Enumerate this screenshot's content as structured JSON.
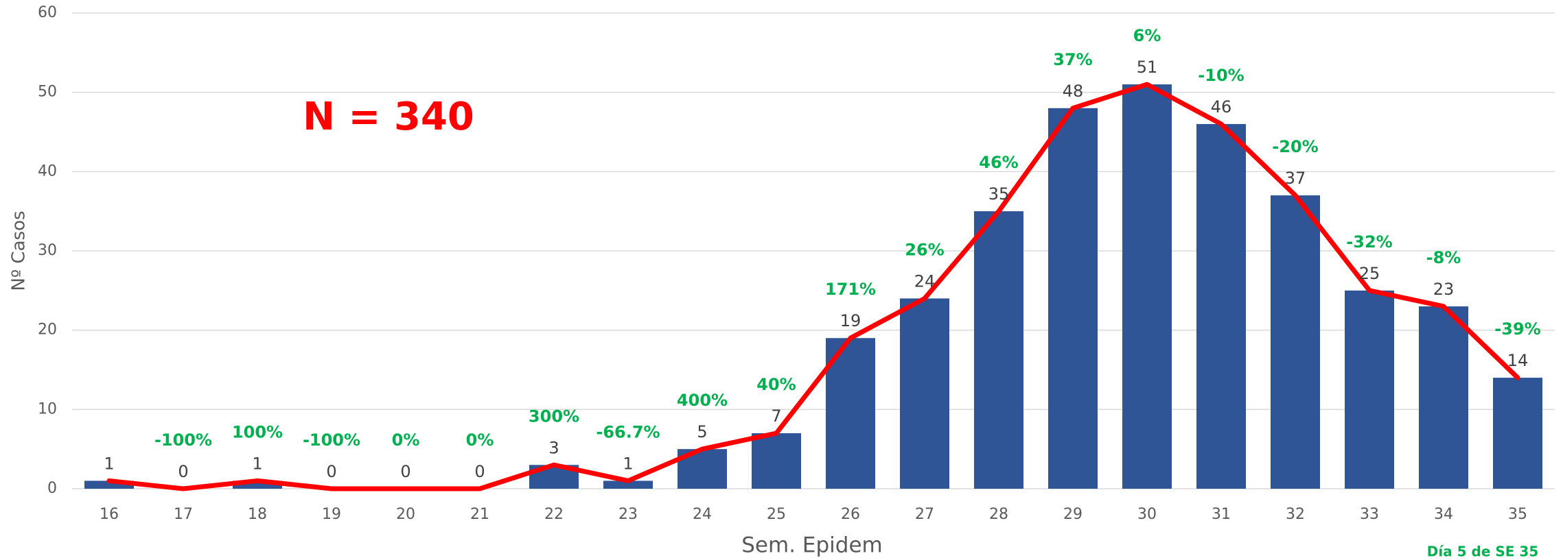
{
  "chart_data": {
    "type": "bar-line",
    "annotation": "N = 340",
    "ylabel": "Nº Casos",
    "xlabel": "Sem. Epidem",
    "footnote": "Día 5 de SE 35",
    "categories": [
      "16",
      "17",
      "18",
      "19",
      "20",
      "21",
      "22",
      "23",
      "24",
      "25",
      "26",
      "27",
      "28",
      "29",
      "30",
      "31",
      "32",
      "33",
      "34",
      "35"
    ],
    "values": [
      1,
      0,
      1,
      0,
      0,
      0,
      3,
      1,
      5,
      7,
      19,
      24,
      35,
      48,
      51,
      46,
      37,
      25,
      23,
      14
    ],
    "change_labels": [
      null,
      "-100%",
      "100%",
      "-100%",
      "0%",
      "0%",
      "300%",
      "-66.7%",
      "400%",
      "40%",
      "171%",
      "26%",
      "46%",
      "37%",
      "6%",
      "-10%",
      "-20%",
      "-32%",
      "-8%",
      "-39%"
    ],
    "color": "#2f5597",
    "line_color": "#ff0000",
    "change_color": "#00b050",
    "ylim": [
      0,
      60
    ],
    "yticks": [
      0,
      10,
      20,
      30,
      40,
      50,
      60
    ],
    "grid": true
  }
}
